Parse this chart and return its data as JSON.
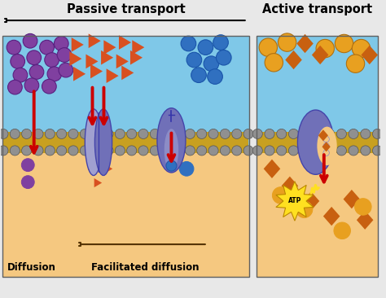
{
  "bg_color": "#e8e8e8",
  "left_panel_bg_top": "#7FC8E8",
  "left_panel_bg_bottom": "#F5C880",
  "right_panel_bg_top": "#7FC8E8",
  "right_panel_bg_bottom": "#F5C880",
  "header_bg": "#e0e0e0",
  "membrane_yellow": "#C8A020",
  "membrane_gray": "#909090",
  "protein_color": "#7070B8",
  "protein_light": "#A0A0D0",
  "purple_circle": "#8040A0",
  "red_arrow": "#CC0000",
  "orange_triangle": "#D85020",
  "blue_circle": "#3070C0",
  "orange_circle": "#E8A020",
  "orange_diamond": "#C86010",
  "atp_yellow": "#FFE020",
  "title_passive": "Passive transport",
  "title_active": "Active transport",
  "label_diffusion": "Diffusion",
  "label_facilitated": "Facilitated diffusion",
  "fig_width": 4.74,
  "fig_height": 3.66,
  "dpi": 100
}
